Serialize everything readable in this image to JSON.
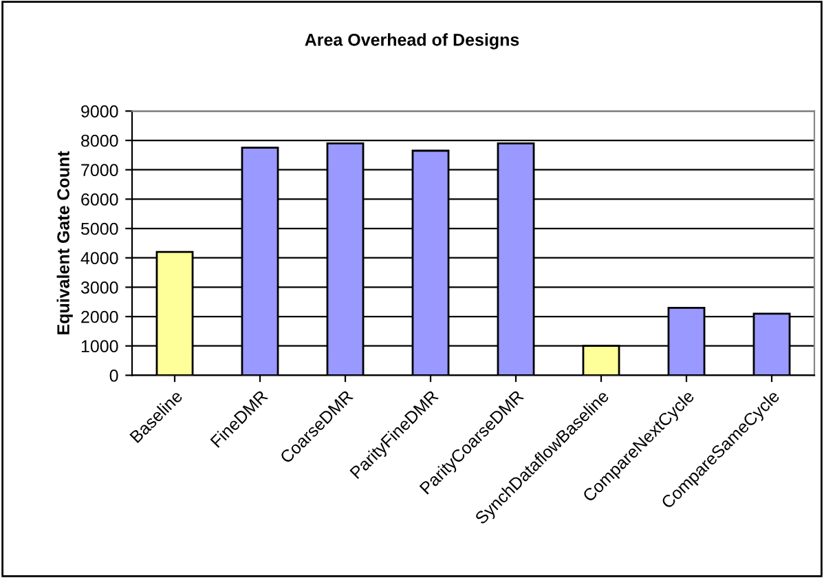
{
  "chart_data": {
    "type": "bar",
    "title": "Area Overhead of Designs",
    "ylabel": "Equivalent Gate Count",
    "categories": [
      "Baseline",
      "FineDMR",
      "CoarseDMR",
      "ParityFineDMR",
      "ParityCoarseDMR",
      "SynchDataflowBaseline",
      "CompareNextCycle",
      "CompareSameCycle"
    ],
    "values": [
      4200,
      7750,
      7900,
      7650,
      7900,
      1000,
      2300,
      2100
    ],
    "colors": [
      "#ffff99",
      "#9999ff",
      "#9999ff",
      "#9999ff",
      "#9999ff",
      "#ffff99",
      "#9999ff",
      "#9999ff"
    ],
    "ylim": [
      0,
      9000
    ],
    "yticks": [
      0,
      1000,
      2000,
      3000,
      4000,
      5000,
      6000,
      7000,
      8000,
      9000
    ],
    "grid": "y"
  }
}
